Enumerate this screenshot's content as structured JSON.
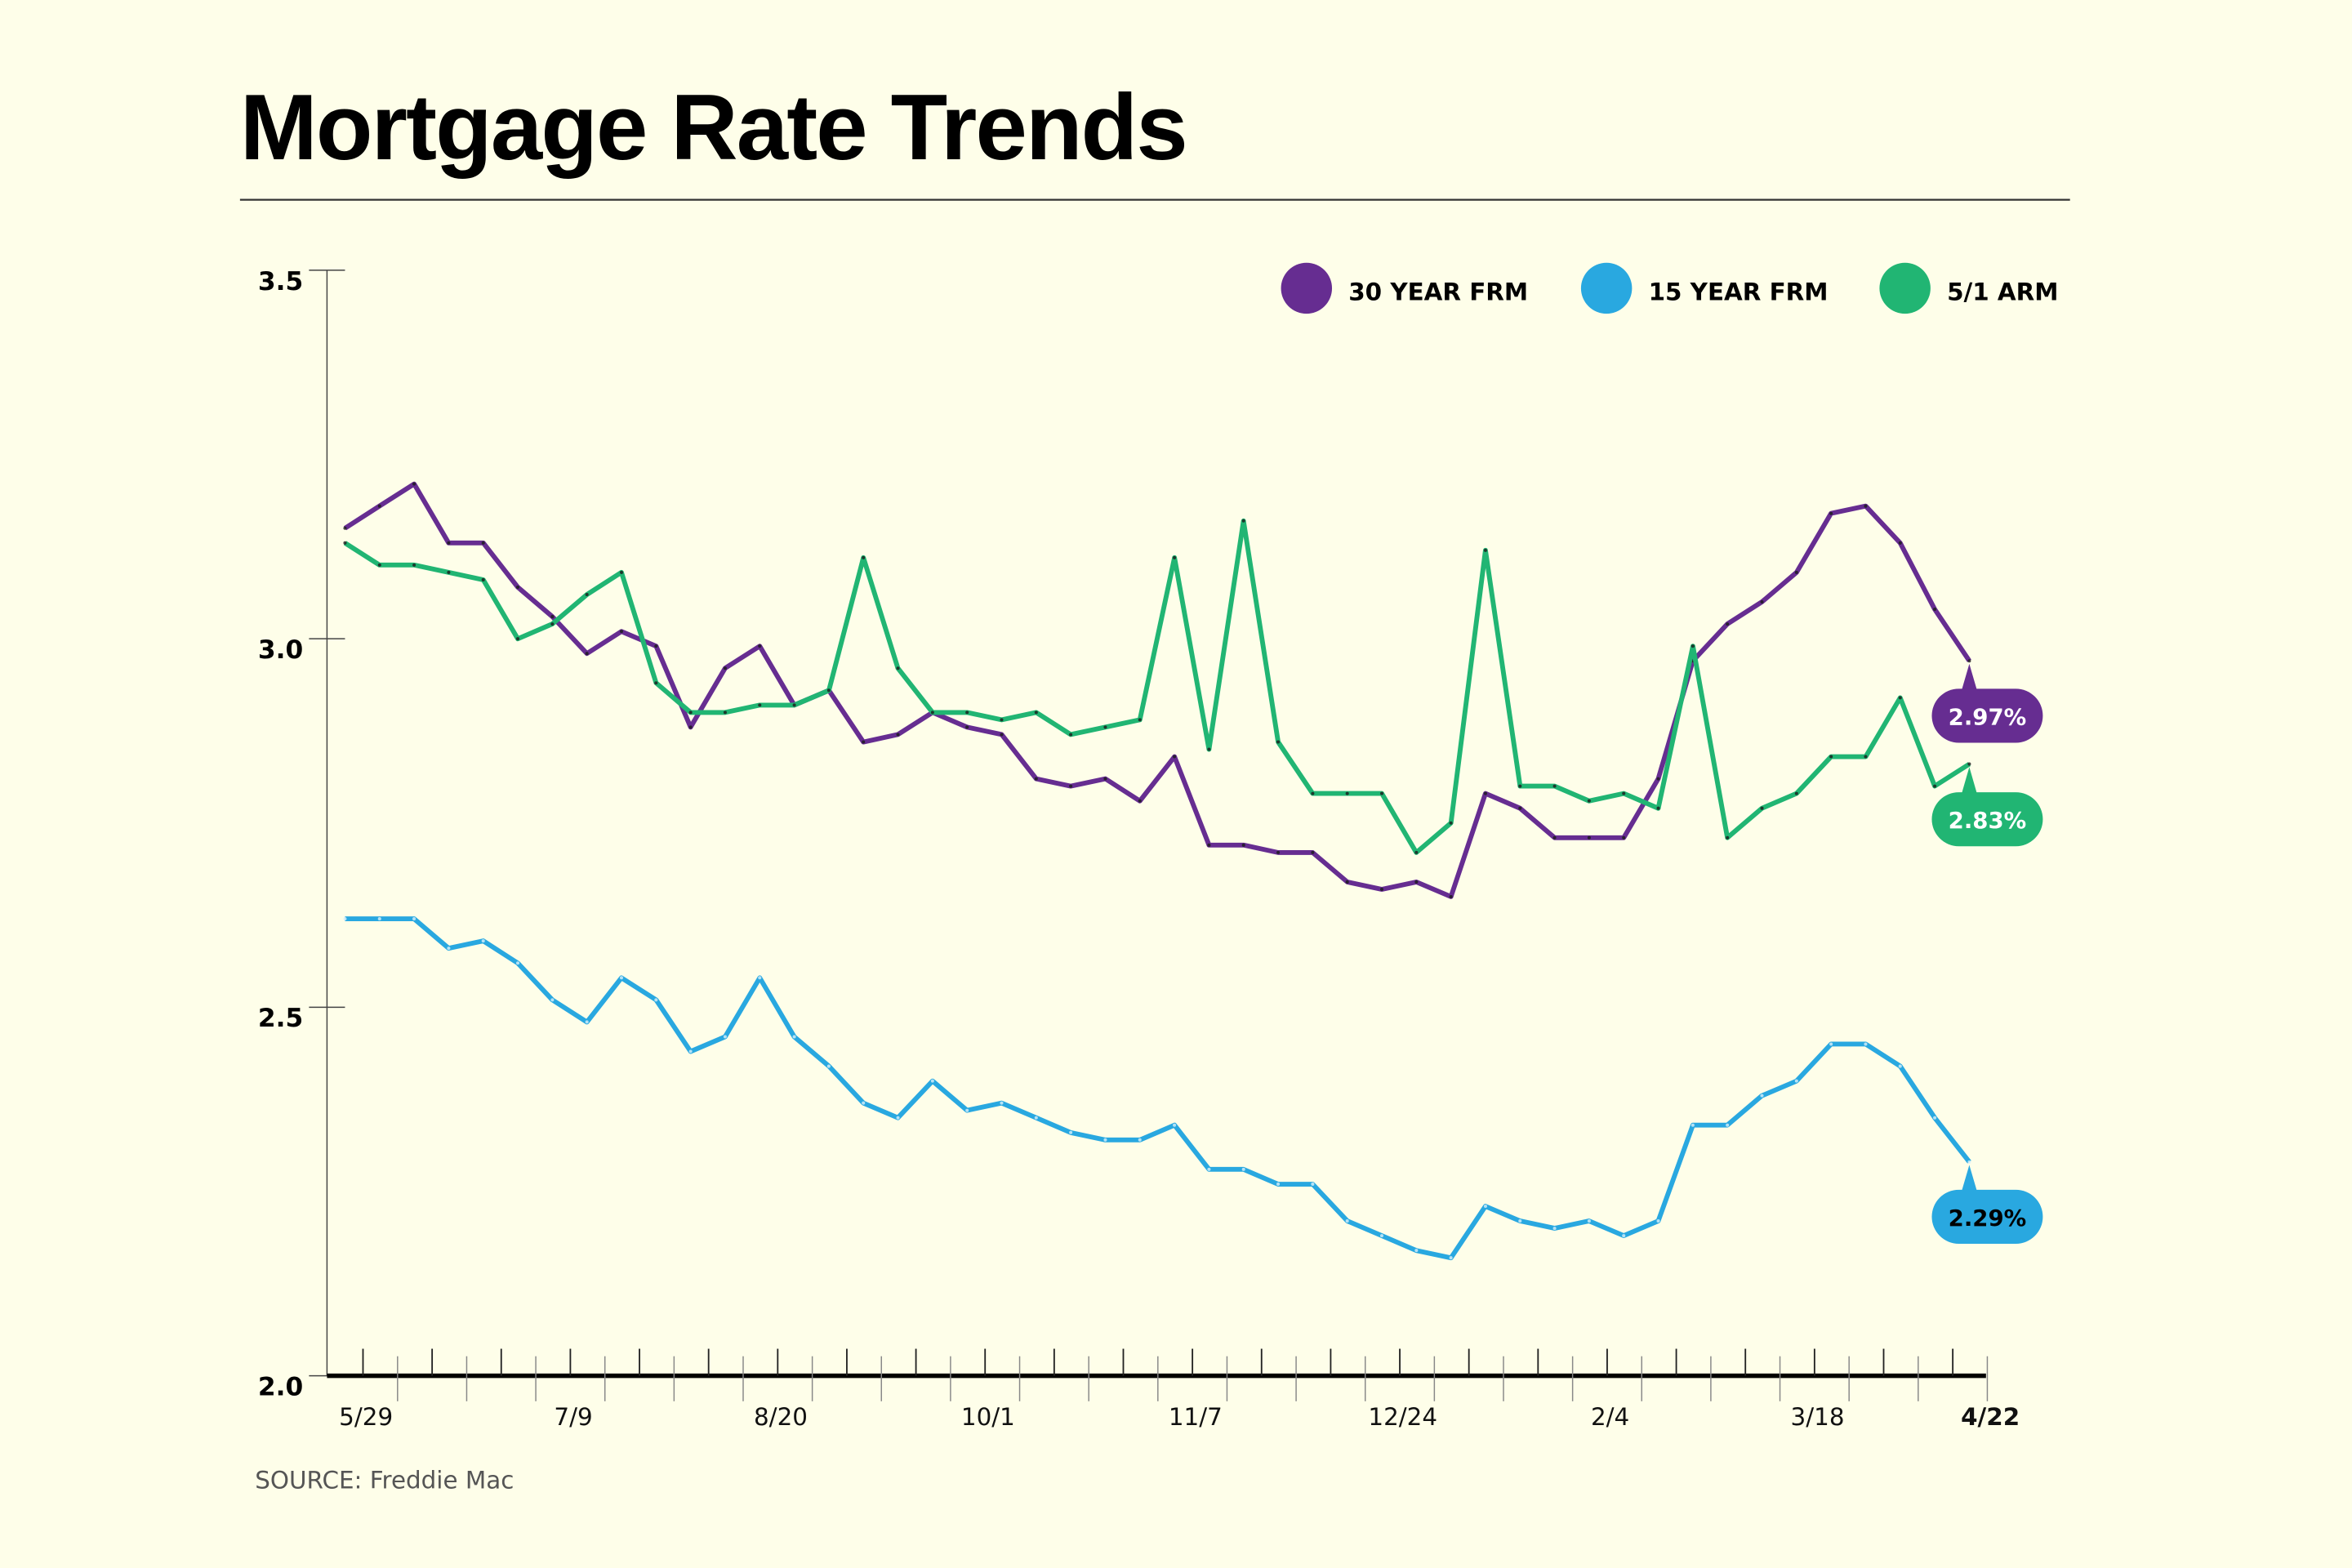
{
  "title": "Mortgage Rate Trends",
  "source": "SOURCE: Freddie Mac",
  "chart_data": {
    "type": "line",
    "title": "Mortgage Rate Trends",
    "xlabel": "",
    "ylabel": "",
    "ylim": [
      2.0,
      3.5
    ],
    "yticks": [
      "2.0",
      "2.5",
      "3.0",
      "3.5"
    ],
    "xtick_labels": [
      {
        "index": 0,
        "label": "5/29"
      },
      {
        "index": 6,
        "label": "7/9"
      },
      {
        "index": 12,
        "label": "8/20"
      },
      {
        "index": 18,
        "label": "10/1"
      },
      {
        "index": 24,
        "label": "11/7"
      },
      {
        "index": 30,
        "label": "12/24"
      },
      {
        "index": 36,
        "label": "2/4"
      },
      {
        "index": 42,
        "label": "3/18"
      },
      {
        "index": 47,
        "label": "4/22"
      }
    ],
    "legend_position": "top-right",
    "series": [
      {
        "name": "30 YEAR FRM",
        "color": "#662d91",
        "end_label": "2.97%",
        "values": [
          3.15,
          3.18,
          3.21,
          3.13,
          3.13,
          3.07,
          3.03,
          2.98,
          3.01,
          2.99,
          2.88,
          2.96,
          2.99,
          2.91,
          2.93,
          2.86,
          2.87,
          2.9,
          2.88,
          2.87,
          2.81,
          2.8,
          2.81,
          2.78,
          2.84,
          2.72,
          2.72,
          2.71,
          2.71,
          2.67,
          2.66,
          2.67,
          2.65,
          2.79,
          2.77,
          2.73,
          2.73,
          2.73,
          2.81,
          2.97,
          3.02,
          3.05,
          3.09,
          3.17,
          3.18,
          3.13,
          3.04,
          2.97
        ]
      },
      {
        "name": "15 YEAR FRM",
        "color": "#29a8e0",
        "end_label": "2.29%",
        "values": [
          2.62,
          2.62,
          2.62,
          2.58,
          2.59,
          2.56,
          2.51,
          2.48,
          2.54,
          2.51,
          2.44,
          2.46,
          2.54,
          2.46,
          2.42,
          2.37,
          2.35,
          2.4,
          2.36,
          2.37,
          2.35,
          2.33,
          2.32,
          2.32,
          2.34,
          2.28,
          2.28,
          2.26,
          2.26,
          2.21,
          2.19,
          2.17,
          2.16,
          2.23,
          2.21,
          2.2,
          2.21,
          2.19,
          2.21,
          2.34,
          2.34,
          2.38,
          2.4,
          2.45,
          2.45,
          2.42,
          2.35,
          2.29
        ]
      },
      {
        "name": "5/1 ARM",
        "color": "#21b573",
        "end_label": "2.83%",
        "values": [
          3.13,
          3.1,
          3.1,
          3.09,
          3.08,
          3.0,
          3.02,
          3.06,
          3.09,
          2.94,
          2.9,
          2.9,
          2.91,
          2.91,
          2.93,
          3.11,
          2.96,
          2.9,
          2.9,
          2.89,
          2.9,
          2.87,
          2.88,
          2.89,
          3.11,
          2.85,
          3.16,
          2.86,
          2.79,
          2.79,
          2.79,
          2.71,
          2.75,
          3.12,
          2.8,
          2.8,
          2.78,
          2.79,
          2.77,
          2.99,
          2.73,
          2.77,
          2.79,
          2.84,
          2.84,
          2.92,
          2.8,
          2.83
        ]
      }
    ]
  }
}
